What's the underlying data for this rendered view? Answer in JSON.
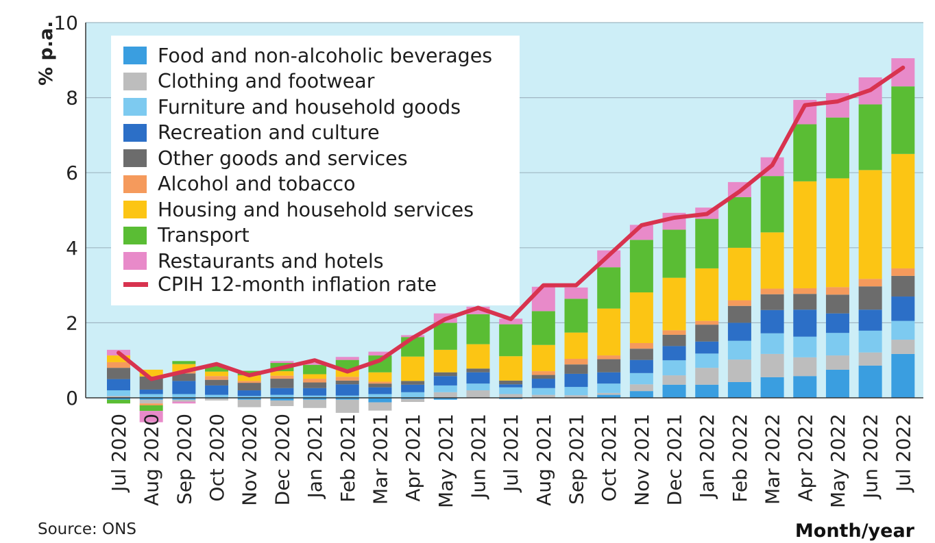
{
  "chart_data": {
    "type": "bar",
    "subtype": "stacked-with-line",
    "xlabel": "Month/year",
    "ylabel": "% p.a.",
    "ylim": [
      0,
      10
    ],
    "yticks": [
      0,
      2,
      4,
      6,
      8,
      10
    ],
    "grid": true,
    "legend_position": "top-left",
    "source": "Source: ONS",
    "categories": [
      "Jul 2020",
      "Aug 2020",
      "Sep 2020",
      "Oct 2020",
      "Nov 2020",
      "Dec 2020",
      "Jan 2021",
      "Feb 2021",
      "Mar 2021",
      "Apr 2021",
      "May 2021",
      "Jun 2021",
      "Jul 2021",
      "Aug 2021",
      "Sep 2021",
      "Oct 2021",
      "Nov 2021",
      "Dec 2021",
      "Jan 2022",
      "Feb 2022",
      "Mar 2022",
      "Apr 2022",
      "May 2022",
      "Jun 2022",
      "Jul 2022"
    ],
    "series": [
      {
        "name": "Food and non-alcoholic beverages",
        "color": "#3a9ee0",
        "values": [
          -0.05,
          -0.05,
          -0.05,
          -0.02,
          -0.05,
          -0.07,
          -0.05,
          -0.05,
          -0.12,
          -0.03,
          -0.05,
          0.0,
          -0.03,
          0.0,
          0.0,
          0.08,
          0.18,
          0.35,
          0.35,
          0.42,
          0.55,
          0.58,
          0.75,
          0.86,
          1.17
        ]
      },
      {
        "name": "Clothing and footwear",
        "color": "#bdbdbd",
        "values": [
          0.05,
          -0.1,
          -0.05,
          -0.05,
          -0.2,
          -0.15,
          -0.22,
          -0.35,
          -0.22,
          -0.08,
          0.15,
          0.2,
          0.1,
          0.08,
          0.07,
          0.05,
          0.18,
          0.25,
          0.45,
          0.6,
          0.62,
          0.5,
          0.38,
          0.35,
          0.38
        ]
      },
      {
        "name": "Furniture and household goods",
        "color": "#7dcaf0",
        "values": [
          0.15,
          0.1,
          0.1,
          0.08,
          0.05,
          0.08,
          0.06,
          0.06,
          0.1,
          0.15,
          0.18,
          0.18,
          0.18,
          0.18,
          0.22,
          0.25,
          0.3,
          0.4,
          0.38,
          0.5,
          0.55,
          0.55,
          0.6,
          0.58,
          0.5
        ]
      },
      {
        "name": "Recreation and culture",
        "color": "#2c6fc7",
        "values": [
          0.3,
          0.12,
          0.35,
          0.25,
          0.15,
          0.18,
          0.2,
          0.3,
          0.18,
          0.2,
          0.25,
          0.3,
          0.08,
          0.25,
          0.35,
          0.3,
          0.35,
          0.38,
          0.32,
          0.48,
          0.62,
          0.72,
          0.52,
          0.56,
          0.65
        ]
      },
      {
        "name": "Other goods and services",
        "color": "#6c6c6c",
        "values": [
          0.3,
          0.35,
          0.2,
          0.15,
          0.2,
          0.25,
          0.15,
          0.1,
          0.1,
          0.1,
          0.1,
          0.1,
          0.1,
          0.1,
          0.25,
          0.35,
          0.3,
          0.3,
          0.45,
          0.45,
          0.42,
          0.42,
          0.5,
          0.62,
          0.55
        ]
      },
      {
        "name": "Alcohol and tobacco",
        "color": "#f59a5c",
        "values": [
          0.15,
          -0.05,
          0.05,
          0.1,
          0.05,
          0.08,
          0.1,
          0.1,
          0.05,
          0.0,
          0.0,
          0.0,
          0.0,
          0.1,
          0.15,
          0.1,
          0.15,
          0.12,
          0.1,
          0.15,
          0.15,
          0.15,
          0.2,
          0.2,
          0.2
        ]
      },
      {
        "name": "Housing and household services",
        "color": "#fcc514",
        "values": [
          0.18,
          0.18,
          0.2,
          0.12,
          0.15,
          0.12,
          0.12,
          0.2,
          0.25,
          0.65,
          0.6,
          0.65,
          0.65,
          0.7,
          0.7,
          1.25,
          1.35,
          1.4,
          1.4,
          1.4,
          1.5,
          2.85,
          2.9,
          2.9,
          3.05
        ]
      },
      {
        "name": "Transport",
        "color": "#5abd34",
        "values": [
          -0.1,
          -0.15,
          0.08,
          0.15,
          0.12,
          0.22,
          0.25,
          0.25,
          0.45,
          0.52,
          0.72,
          0.8,
          0.85,
          0.9,
          0.9,
          1.1,
          1.4,
          1.28,
          1.32,
          1.35,
          1.5,
          1.52,
          1.62,
          1.75,
          1.8
        ]
      },
      {
        "name": "Restaurants and hotels",
        "color": "#e88ac9",
        "values": [
          0.15,
          -0.3,
          -0.05,
          0.0,
          0.0,
          0.05,
          0.05,
          0.08,
          0.1,
          0.05,
          0.25,
          0.2,
          0.15,
          0.65,
          0.3,
          0.45,
          0.4,
          0.45,
          0.3,
          0.4,
          0.5,
          0.65,
          0.65,
          0.72,
          0.75
        ]
      }
    ],
    "line": {
      "name": "CPIH 12-month inflation rate",
      "color": "#d8334f",
      "values": [
        1.2,
        0.5,
        0.7,
        0.9,
        0.6,
        0.8,
        1.0,
        0.7,
        1.0,
        1.6,
        2.1,
        2.4,
        2.1,
        3.0,
        3.0,
        3.8,
        4.6,
        4.8,
        4.9,
        5.5,
        6.2,
        7.8,
        7.9,
        8.2,
        8.8
      ]
    }
  }
}
